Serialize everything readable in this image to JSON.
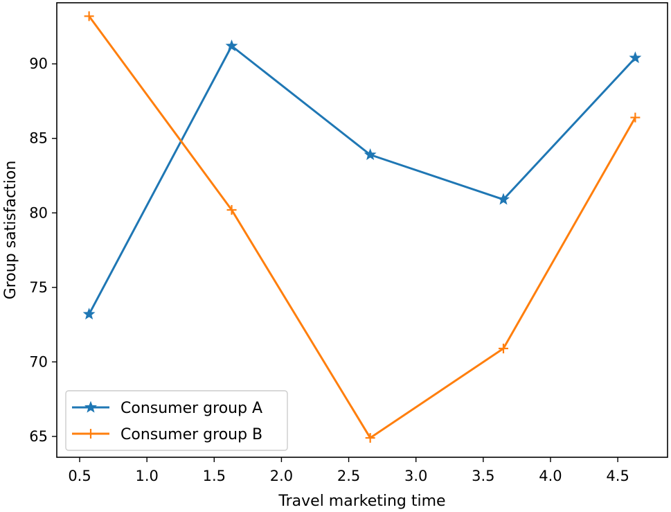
{
  "chart_data": {
    "type": "line",
    "title": "",
    "xlabel": "Travel marketing time",
    "ylabel": "Group satisfaction",
    "xlim": [
      0.33,
      4.87
    ],
    "ylim": [
      63.6,
      94.1
    ],
    "xticks": [
      "0.5",
      "1.0",
      "1.5",
      "2.0",
      "2.5",
      "3.0",
      "3.5",
      "4.0",
      "4.5"
    ],
    "xtick_values": [
      0.5,
      1.0,
      1.5,
      2.0,
      2.5,
      3.0,
      3.5,
      4.0,
      4.5
    ],
    "yticks": [
      "65",
      "70",
      "75",
      "80",
      "85",
      "90"
    ],
    "ytick_values": [
      65,
      70,
      75,
      80,
      85,
      90
    ],
    "grid": false,
    "legend_position": "lower-left",
    "series": [
      {
        "name": "Consumer group A",
        "color": "#1f77b4",
        "marker": "star",
        "x": [
          0.57,
          1.63,
          2.66,
          3.65,
          4.63
        ],
        "y": [
          73.2,
          91.2,
          83.9,
          80.9,
          90.4
        ]
      },
      {
        "name": "Consumer group B",
        "color": "#ff7f0e",
        "marker": "plus",
        "x": [
          0.57,
          1.63,
          2.66,
          3.65,
          4.63
        ],
        "y": [
          93.2,
          80.2,
          64.9,
          70.9,
          86.4
        ]
      }
    ]
  }
}
